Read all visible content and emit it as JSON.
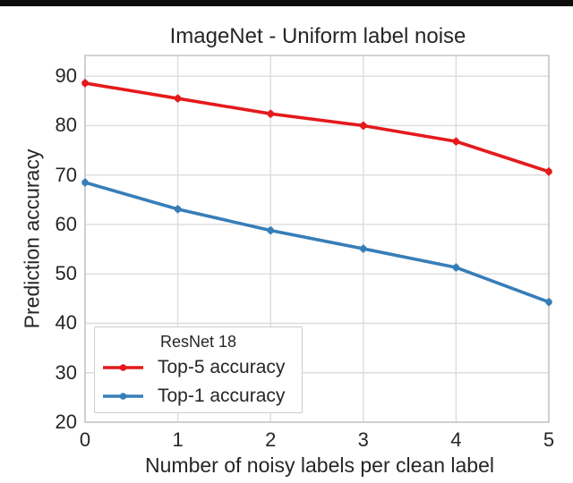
{
  "figure": {
    "top_border_color": "#0d0d0d",
    "background_color": "#ffffff"
  },
  "chart_data": {
    "type": "line",
    "title": "ImageNet - Uniform label noise",
    "xlabel": "Number of noisy labels per clean label",
    "ylabel": "Prediction accuracy",
    "legend_title": "ResNet 18",
    "legend_position": "lower left",
    "grid": true,
    "error_bars_visible": true,
    "x": [
      0,
      1,
      2,
      3,
      4,
      5
    ],
    "xticks": [
      0,
      1,
      2,
      3,
      4,
      5
    ],
    "yticks": [
      20,
      30,
      40,
      50,
      60,
      70,
      80,
      90
    ],
    "xlim": [
      0,
      5
    ],
    "ylim": [
      20,
      94.2
    ],
    "series": [
      {
        "name": "Top-5 accuracy",
        "color": "#e41a1c",
        "values": [
          88.6,
          85.5,
          82.4,
          80.0,
          76.8,
          70.7
        ]
      },
      {
        "name": "Top-1 accuracy",
        "color": "#377eb8",
        "values": [
          68.5,
          63.1,
          58.8,
          55.1,
          51.3,
          44.3
        ]
      }
    ],
    "colors": {
      "grid": "#dcdcdc",
      "spine": "#c8c8c8",
      "text": "#262626"
    }
  }
}
